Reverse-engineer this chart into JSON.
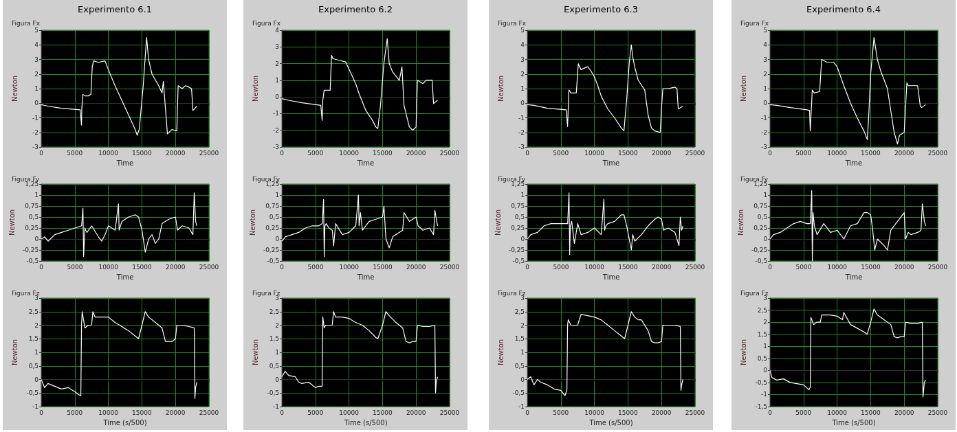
{
  "chart_data": [
    {
      "type": "line",
      "title": "Experimento 6.1",
      "subtitle": "Figura Fx",
      "xlabel": "Time",
      "ylabel": "Newton",
      "xlim": [
        0,
        25000
      ],
      "xticks": [
        0,
        5000,
        10000,
        15000,
        20000,
        25000
      ],
      "ylim": [
        -3,
        5
      ],
      "yticks": [
        -3,
        -2,
        -1,
        0,
        1,
        2,
        3,
        4,
        5
      ],
      "grid": true,
      "marker": "none",
      "series": [
        {
          "color": "#ffffff",
          "x": [
            0,
            1000,
            3000,
            5800,
            6000,
            6050,
            6200,
            6500,
            7000,
            7400,
            7600,
            7800,
            8500,
            9500,
            10000,
            11000,
            12000,
            13000,
            14000,
            14300,
            14600,
            15200,
            15500,
            15700,
            16000,
            16500,
            17500,
            18000,
            18200,
            18800,
            19500,
            20200,
            20400,
            21000,
            21500,
            22000,
            22400,
            22600,
            23200
          ],
          "values": [
            -0.1,
            -0.2,
            -0.35,
            -0.45,
            -1.5,
            -0.3,
            0.6,
            0.5,
            0.5,
            0.6,
            2.5,
            2.9,
            2.8,
            2.9,
            2.3,
            1.2,
            0.2,
            -0.8,
            -1.8,
            -2.2,
            -1.8,
            1.2,
            3.2,
            4.5,
            3.0,
            2.0,
            1.2,
            0.7,
            1.5,
            -2.1,
            -1.8,
            -1.9,
            1.2,
            1.0,
            1.2,
            1.1,
            1.0,
            -0.5,
            -0.2
          ]
        }
      ]
    },
    {
      "type": "line",
      "title": "Experimento 6.2",
      "subtitle": "Figura Fx",
      "xlabel": "Time",
      "ylabel": "Newton",
      "xlim": [
        0,
        25000
      ],
      "xticks": [
        0,
        5000,
        10000,
        15000,
        20000,
        25000
      ],
      "ylim": [
        -3,
        4
      ],
      "yticks": [
        -3,
        -2,
        -1,
        0,
        1,
        2,
        3,
        4
      ],
      "grid": true,
      "marker": "none",
      "series": [
        {
          "color": "#ffffff",
          "x": [
            0,
            1000,
            3000,
            5800,
            6000,
            6100,
            6300,
            7200,
            7400,
            7600,
            8500,
            9500,
            10200,
            11000,
            11500,
            12500,
            13500,
            14000,
            14300,
            14700,
            15200,
            15700,
            16000,
            16500,
            17500,
            17900,
            18200,
            19000,
            19500,
            20000,
            20200,
            21000,
            21500,
            22000,
            22400,
            22600,
            23200
          ],
          "values": [
            -0.1,
            -0.2,
            -0.35,
            -0.5,
            -1.4,
            -0.2,
            0.4,
            0.4,
            2.5,
            2.3,
            2.2,
            2.1,
            1.5,
            0.8,
            0.2,
            -0.8,
            -1.4,
            -1.8,
            -1.9,
            -0.5,
            2.0,
            3.5,
            2.0,
            1.5,
            1.0,
            1.8,
            -0.5,
            -1.8,
            -2.0,
            -1.8,
            1.0,
            0.8,
            1.0,
            1.0,
            1.0,
            -0.4,
            -0.2
          ]
        }
      ]
    },
    {
      "type": "line",
      "title": "Experimento 6.3",
      "subtitle": "Figura Fx",
      "xlabel": "Time",
      "ylabel": "Newton",
      "xlim": [
        0,
        25000
      ],
      "xticks": [
        0,
        5000,
        10000,
        15000,
        20000,
        25000
      ],
      "ylim": [
        -3,
        5
      ],
      "yticks": [
        -3,
        -2,
        -1,
        0,
        1,
        2,
        3,
        4,
        5
      ],
      "grid": true,
      "marker": "none",
      "series": [
        {
          "color": "#ffffff",
          "x": [
            0,
            1000,
            3000,
            5800,
            6000,
            6200,
            6500,
            7300,
            7600,
            8000,
            9000,
            9500,
            10000,
            10500,
            11000,
            12000,
            13000,
            14000,
            14400,
            14800,
            15200,
            15500,
            15700,
            16000,
            16500,
            17500,
            18000,
            18500,
            19000,
            19800,
            20000,
            20200,
            21000,
            22000,
            22300,
            22500,
            23200
          ],
          "values": [
            -0.1,
            -0.15,
            -0.35,
            -0.45,
            -1.6,
            0.9,
            0.7,
            0.7,
            2.7,
            2.3,
            2.5,
            2.2,
            1.8,
            1.2,
            0.5,
            -0.4,
            -1.0,
            -1.7,
            -1.9,
            0.2,
            2.8,
            4.0,
            3.2,
            2.5,
            1.6,
            0.9,
            -0.8,
            -1.7,
            -1.9,
            -2.0,
            -0.3,
            1.0,
            1.0,
            1.1,
            1.0,
            -0.4,
            -0.2
          ]
        }
      ]
    },
    {
      "type": "line",
      "title": "Experimento 6.4",
      "subtitle": "Figura Fx",
      "xlabel": "Time",
      "ylabel": "Newton",
      "xlim": [
        0,
        25000
      ],
      "xticks": [
        0,
        5000,
        10000,
        15000,
        20000,
        25000
      ],
      "ylim": [
        -3,
        5
      ],
      "yticks": [
        -3,
        -2,
        -1,
        0,
        1,
        2,
        3,
        4,
        5
      ],
      "grid": true,
      "marker": "none",
      "series": [
        {
          "color": "#ffffff",
          "x": [
            0,
            1000,
            3000,
            5500,
            5900,
            6000,
            6300,
            6600,
            7400,
            7700,
            8500,
            9500,
            10000,
            11000,
            12000,
            13000,
            14000,
            14500,
            14700,
            15000,
            15500,
            16000,
            16500,
            17500,
            18500,
            19000,
            19300,
            20000,
            20400,
            20600,
            22000,
            22400,
            22600,
            23200
          ],
          "values": [
            -0.1,
            -0.15,
            -0.3,
            -0.45,
            -0.5,
            -1.9,
            0.9,
            0.7,
            0.8,
            3.0,
            2.8,
            2.8,
            2.5,
            1.2,
            0.0,
            -1.0,
            -1.9,
            -2.5,
            -1.0,
            2.0,
            4.5,
            3.0,
            2.2,
            1.0,
            -2.0,
            -2.8,
            -2.2,
            -2.0,
            1.4,
            1.2,
            1.2,
            -0.2,
            -0.3,
            -0.1
          ]
        }
      ]
    },
    {
      "type": "line",
      "title": "Figura Fy",
      "xlabel": "Time",
      "ylabel": "Newton",
      "xlim": [
        0,
        25000
      ],
      "xticks": [
        0,
        5000,
        10000,
        15000,
        20000,
        25000
      ],
      "ylim": [
        -0.5,
        1.25
      ],
      "yticks": [
        {
          "value": -0.5,
          "label": "-0,5"
        },
        {
          "value": -0.25,
          "label": "-0,25"
        },
        0,
        {
          "value": 0.25,
          "label": "0,25"
        },
        {
          "value": 0.5,
          "label": "0,5"
        },
        {
          "value": 0.75,
          "label": "0,75"
        },
        1,
        {
          "value": 1.25,
          "label": "1,25"
        }
      ],
      "grid": true,
      "marker": "none",
      "series": [
        {
          "color": "#ffffff",
          "x": [
            0,
            500,
            1000,
            2000,
            3000,
            4000,
            5000,
            6000,
            6200,
            6300,
            6500,
            6600,
            6800,
            7500,
            8500,
            9000,
            9500,
            10000,
            11000,
            11500,
            11600,
            12000,
            13000,
            14000,
            14500,
            15000,
            15500,
            16000,
            16500,
            17000,
            17500,
            18000,
            19000,
            20000,
            20300,
            21000,
            22000,
            22600,
            22800,
            23000,
            23200
          ],
          "values": [
            0,
            0.05,
            -0.05,
            0.1,
            0.15,
            0.2,
            0.25,
            0.3,
            0.7,
            -0.4,
            0.25,
            0.2,
            0.15,
            0.3,
            0.05,
            -0.05,
            0.1,
            0.3,
            0.2,
            0.8,
            0.2,
            0.4,
            0.5,
            0.55,
            0.5,
            0.2,
            -0.3,
            0,
            0.1,
            -0.1,
            0.0,
            0.35,
            0.45,
            0.5,
            0.2,
            0.3,
            0.25,
            0.1,
            1.05,
            0.4,
            0.3
          ]
        }
      ]
    },
    {
      "type": "line",
      "title": "Figura Fy",
      "xlabel": "Time",
      "ylabel": "Newton",
      "xlim": [
        0,
        25000
      ],
      "xticks": [
        0,
        5000,
        10000,
        15000,
        20000,
        25000
      ],
      "ylim": [
        -0.5,
        1.25
      ],
      "yticks": [
        {
          "value": -0.5,
          "label": "-0,5"
        },
        {
          "value": -0.25,
          "label": "-0,25"
        },
        0,
        {
          "value": 0.25,
          "label": "0,25"
        },
        {
          "value": 0.5,
          "label": "0,5"
        },
        {
          "value": 0.75,
          "label": "0,75"
        },
        1,
        {
          "value": 1.25,
          "label": "1,25"
        }
      ],
      "grid": true,
      "marker": "none",
      "series": [
        {
          "color": "#ffffff",
          "x": [
            0,
            500,
            1500,
            2500,
            3500,
            4500,
            5500,
            6000,
            6200,
            6300,
            6400,
            6600,
            7000,
            7500,
            7700,
            8000,
            9000,
            10000,
            11000,
            11400,
            11500,
            11700,
            12000,
            13000,
            14000,
            15000,
            15200,
            15500,
            16000,
            16500,
            17000,
            18000,
            18200,
            19000,
            20000,
            20300,
            21000,
            22000,
            22600,
            22800,
            23200
          ],
          "values": [
            -0.05,
            0.05,
            0.1,
            0.15,
            0.25,
            0.3,
            0.3,
            0.35,
            0.9,
            -0.4,
            0.3,
            0.35,
            0.25,
            0.2,
            -0.15,
            0.35,
            0.1,
            0.15,
            0.3,
            1.0,
            0.3,
            0.6,
            0.2,
            0.4,
            0.45,
            0.5,
            0.75,
            0.0,
            -0.2,
            0.05,
            0.1,
            0.2,
            0.6,
            0.4,
            0.5,
            0.3,
            0.2,
            0.25,
            0.1,
            0.65,
            0.3
          ]
        }
      ]
    },
    {
      "type": "line",
      "title": "Figura Fy",
      "xlabel": "Time",
      "ylabel": "Newton",
      "xlim": [
        0,
        25000
      ],
      "xticks": [
        0,
        5000,
        10000,
        15000,
        20000,
        25000
      ],
      "ylim": [
        -0.5,
        1.25
      ],
      "yticks": [
        {
          "value": -0.5,
          "label": "-0,5"
        },
        {
          "value": -0.25,
          "label": "-0,25"
        },
        0,
        {
          "value": 0.25,
          "label": "0,25"
        },
        {
          "value": 0.5,
          "label": "0,5"
        },
        {
          "value": 0.75,
          "label": "0,75"
        },
        1,
        {
          "value": 1.25,
          "label": "1,25"
        }
      ],
      "grid": true,
      "marker": "none",
      "series": [
        {
          "color": "#ffffff",
          "x": [
            0,
            500,
            1500,
            2500,
            3500,
            4500,
            5500,
            6000,
            6200,
            6300,
            6400,
            6600,
            7000,
            7500,
            8000,
            9000,
            10000,
            11000,
            11400,
            11500,
            11700,
            12000,
            13000,
            14000,
            14400,
            14800,
            15500,
            15700,
            16000,
            17000,
            18000,
            19000,
            19500,
            20000,
            20300,
            21000,
            22000,
            22600,
            22800,
            23000,
            23200
          ],
          "values": [
            0,
            0.1,
            0.15,
            0.3,
            0.35,
            0.35,
            0.35,
            0.35,
            1.05,
            -0.35,
            0.3,
            0.4,
            -0.1,
            0.35,
            0.1,
            0.15,
            0.25,
            0.1,
            0.9,
            0.2,
            0.3,
            0.35,
            0.4,
            0.55,
            0.55,
            0.3,
            -0.25,
            0.1,
            -0.05,
            0.1,
            0.3,
            0.45,
            0.5,
            0.45,
            0.2,
            0.25,
            0.15,
            -0.15,
            0.5,
            0.2,
            0.3
          ]
        }
      ]
    },
    {
      "type": "line",
      "title": "Figura Fy",
      "xlabel": "Time",
      "ylabel": "Newton",
      "xlim": [
        0,
        25000
      ],
      "xticks": [
        0,
        5000,
        10000,
        15000,
        20000,
        25000
      ],
      "ylim": [
        -0.5,
        1.25
      ],
      "yticks": [
        {
          "value": -0.5,
          "label": "-0,5"
        },
        {
          "value": -0.25,
          "label": "-0,25"
        },
        0,
        {
          "value": 0.25,
          "label": "0,25"
        },
        {
          "value": 0.5,
          "label": "0,5"
        },
        {
          "value": 0.75,
          "label": "0,75"
        },
        1,
        {
          "value": 1.25,
          "label": "1,25"
        }
      ],
      "grid": true,
      "marker": "none",
      "series": [
        {
          "color": "#ffffff",
          "x": [
            0,
            500,
            1500,
            2500,
            3500,
            4500,
            5500,
            6000,
            6200,
            6300,
            6400,
            6600,
            7000,
            8000,
            9000,
            10000,
            11000,
            12000,
            13000,
            14000,
            14500,
            15000,
            15300,
            15600,
            16000,
            17000,
            17500,
            18000,
            19000,
            20000,
            20200,
            20600,
            21000,
            22000,
            22500,
            22700,
            23000,
            23200
          ],
          "values": [
            0,
            0.1,
            0.15,
            0.25,
            0.35,
            0.4,
            0.35,
            0.35,
            1.1,
            -0.5,
            0.6,
            0.3,
            0.1,
            0.35,
            0.15,
            0.2,
            0.0,
            0.3,
            0.35,
            0.6,
            0.6,
            0.55,
            0.2,
            -0.25,
            0.0,
            -0.15,
            -0.25,
            0.2,
            0.4,
            0.6,
            0.0,
            0.15,
            0.1,
            0.15,
            0.2,
            0.8,
            0.4,
            0.3
          ]
        }
      ]
    },
    {
      "type": "line",
      "title": "Figura Fz",
      "xlabel": "Time (s/500)",
      "ylabel": "Newton",
      "xlim": [
        0,
        25000
      ],
      "xticks": [
        0,
        5000,
        10000,
        15000,
        20000,
        25000
      ],
      "ylim": [
        -1,
        3
      ],
      "yticks": [
        -1,
        {
          "value": -0.5,
          "label": "-0,5"
        },
        0,
        {
          "value": 0.5,
          "label": "0,5"
        },
        1,
        {
          "value": 1.5,
          "label": "1,5"
        },
        2,
        {
          "value": 2.5,
          "label": "2,5"
        },
        3
      ],
      "grid": true,
      "marker": "none",
      "series": [
        {
          "color": "#ffffff",
          "x": [
            0,
            500,
            1000,
            2000,
            3000,
            4000,
            5000,
            5500,
            5900,
            6000,
            6100,
            6500,
            7000,
            7500,
            7700,
            8000,
            9000,
            10000,
            11000,
            12000,
            13000,
            14000,
            14500,
            15000,
            15500,
            16000,
            17000,
            18000,
            18500,
            19000,
            19500,
            20000,
            20200,
            21000,
            22000,
            22800,
            22900,
            23000,
            23200
          ],
          "values": [
            0,
            -0.3,
            -0.15,
            -0.25,
            -0.35,
            -0.3,
            -0.45,
            -0.55,
            -0.6,
            2.0,
            2.5,
            1.9,
            2.0,
            2.0,
            2.5,
            2.3,
            2.3,
            2.3,
            2.1,
            1.95,
            1.8,
            1.6,
            1.5,
            2.0,
            2.5,
            2.3,
            2.1,
            1.9,
            1.4,
            1.4,
            1.4,
            1.5,
            2.0,
            2.0,
            1.95,
            1.9,
            -0.7,
            -0.3,
            -0.1
          ]
        }
      ]
    },
    {
      "type": "line",
      "title": "Figura Fz",
      "xlabel": "Time (s/500)",
      "ylabel": "Newton",
      "xlim": [
        0,
        25000
      ],
      "xticks": [
        0,
        5000,
        10000,
        15000,
        20000,
        25000
      ],
      "ylim": [
        -1,
        3
      ],
      "yticks": [
        -1,
        {
          "value": -0.5,
          "label": "-0,5"
        },
        0,
        {
          "value": 0.5,
          "label": "0,5"
        },
        1,
        {
          "value": 1.5,
          "label": "1,5"
        },
        2,
        {
          "value": 2.5,
          "label": "2,5"
        },
        3
      ],
      "grid": true,
      "marker": "none",
      "series": [
        {
          "color": "#ffffff",
          "x": [
            0,
            500,
            1000,
            2000,
            2500,
            3000,
            4000,
            5000,
            5500,
            6000,
            6100,
            6300,
            6500,
            7500,
            7700,
            8000,
            9000,
            10000,
            11000,
            12000,
            13000,
            14000,
            14300,
            15000,
            15500,
            16000,
            17000,
            18000,
            18500,
            19000,
            19500,
            20000,
            20200,
            21000,
            22000,
            22800,
            22900,
            23000,
            23200
          ],
          "values": [
            0.1,
            0.3,
            0.15,
            0.1,
            -0.1,
            -0.15,
            -0.1,
            -0.3,
            -0.25,
            -0.25,
            2.3,
            1.9,
            2.0,
            2.0,
            2.5,
            2.3,
            2.3,
            2.25,
            2.1,
            2.0,
            1.8,
            1.55,
            1.5,
            2.0,
            2.5,
            2.35,
            2.1,
            1.9,
            1.4,
            1.35,
            1.4,
            1.4,
            2.0,
            1.95,
            1.95,
            2.0,
            -0.5,
            -0.1,
            0.1
          ]
        }
      ]
    },
    {
      "type": "line",
      "title": "Figura Fz",
      "xlabel": "Time (s/500)",
      "ylabel": "Newton",
      "xlim": [
        0,
        25000
      ],
      "xticks": [
        0,
        5000,
        10000,
        15000,
        20000,
        25000
      ],
      "ylim": [
        -1,
        3
      ],
      "yticks": [
        -1,
        {
          "value": -0.5,
          "label": "-0,5"
        },
        0,
        {
          "value": 0.5,
          "label": "0,5"
        },
        1,
        {
          "value": 1.5,
          "label": "1,5"
        },
        2,
        {
          "value": 2.5,
          "label": "2,5"
        },
        3
      ],
      "grid": true,
      "marker": "none",
      "series": [
        {
          "color": "#ffffff",
          "x": [
            0,
            500,
            1000,
            1500,
            2000,
            3000,
            4000,
            5000,
            5600,
            5900,
            6000,
            6100,
            6500,
            7000,
            7500,
            8000,
            9000,
            10000,
            11000,
            12000,
            13000,
            14000,
            14500,
            15000,
            15500,
            16000,
            16500,
            17000,
            18000,
            18500,
            19000,
            19500,
            20000,
            20200,
            21000,
            22000,
            22800,
            22900,
            23000,
            23200
          ],
          "values": [
            0,
            0.1,
            -0.2,
            0,
            -0.1,
            -0.2,
            -0.35,
            -0.4,
            -0.6,
            -0.4,
            2.0,
            2.2,
            2.0,
            2.0,
            2.0,
            2.4,
            2.35,
            2.3,
            2.2,
            2.0,
            1.8,
            1.6,
            1.5,
            2.0,
            2.5,
            2.3,
            2.2,
            2.2,
            1.8,
            1.4,
            1.35,
            1.35,
            1.4,
            2.0,
            2.0,
            2.0,
            1.95,
            -0.4,
            -0.2,
            0
          ]
        }
      ]
    },
    {
      "type": "line",
      "title": "Figura Fz",
      "xlabel": "Time (s/500)",
      "ylabel": "Newton",
      "xlim": [
        0,
        25000
      ],
      "xticks": [
        0,
        5000,
        10000,
        15000,
        20000,
        25000
      ],
      "ylim": [
        -1.5,
        3
      ],
      "yticks": [
        {
          "value": -1.5,
          "label": "-1,5"
        },
        -1,
        {
          "value": -0.5,
          "label": "-0,5"
        },
        0,
        {
          "value": 0.5,
          "label": "0,5"
        },
        1,
        {
          "value": 1.5,
          "label": "1,5"
        },
        2,
        {
          "value": 2.5,
          "label": "2,5"
        },
        3
      ],
      "grid": true,
      "marker": "none",
      "series": [
        {
          "color": "#ffffff",
          "x": [
            0,
            300,
            1000,
            2000,
            3000,
            4000,
            5000,
            5800,
            6000,
            6100,
            6500,
            7000,
            7500,
            7700,
            8000,
            9000,
            10000,
            10800,
            11000,
            12000,
            13000,
            14000,
            14500,
            15000,
            15500,
            16000,
            17000,
            18000,
            18500,
            19000,
            19500,
            20000,
            20200,
            21000,
            22000,
            22700,
            22800,
            23000,
            23200
          ],
          "values": [
            0,
            -0.3,
            -0.4,
            -0.35,
            -0.5,
            -0.55,
            -0.6,
            -0.8,
            -0.7,
            2.2,
            1.9,
            2.0,
            2.0,
            2.3,
            2.3,
            2.3,
            2.25,
            2.1,
            2.4,
            1.9,
            1.75,
            1.6,
            1.5,
            2.0,
            2.55,
            2.3,
            2.1,
            1.9,
            1.4,
            1.35,
            1.4,
            1.4,
            2.0,
            1.95,
            1.95,
            2.0,
            -1.1,
            -0.5,
            -0.4
          ]
        }
      ]
    }
  ]
}
